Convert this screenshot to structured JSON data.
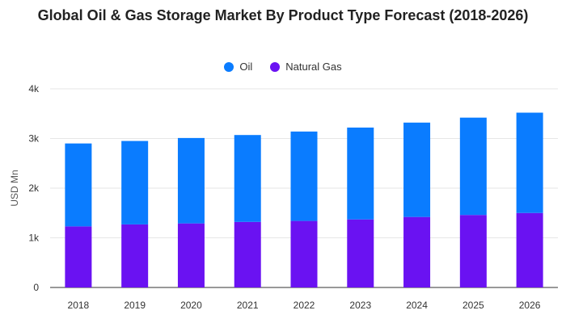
{
  "colors": {
    "oil": "#0a7cff",
    "natural_gas": "#6a12f2",
    "grid": "#e6e6e6",
    "axis": "#333333"
  },
  "chart_data": {
    "type": "bar",
    "stacked": true,
    "title": "Global Oil & Gas Storage Market By Product Type Forecast (2018-2026)",
    "xlabel": "",
    "ylabel": "USD Mn",
    "categories": [
      "2018",
      "2019",
      "2020",
      "2021",
      "2022",
      "2023",
      "2024",
      "2025",
      "2026"
    ],
    "y_ticks": [
      "0",
      "1k",
      "2k",
      "3k",
      "4k"
    ],
    "ylim": [
      0,
      4000
    ],
    "grid": true,
    "legend_position": "top",
    "series": [
      {
        "name": "Natural Gas",
        "color_key": "natural_gas",
        "values": [
          1230,
          1270,
          1290,
          1320,
          1340,
          1370,
          1420,
          1460,
          1500
        ]
      },
      {
        "name": "Oil",
        "color_key": "oil",
        "values": [
          1670,
          1680,
          1720,
          1750,
          1800,
          1850,
          1900,
          1960,
          2020
        ]
      }
    ],
    "legend_order": [
      "Oil",
      "Natural Gas"
    ]
  }
}
